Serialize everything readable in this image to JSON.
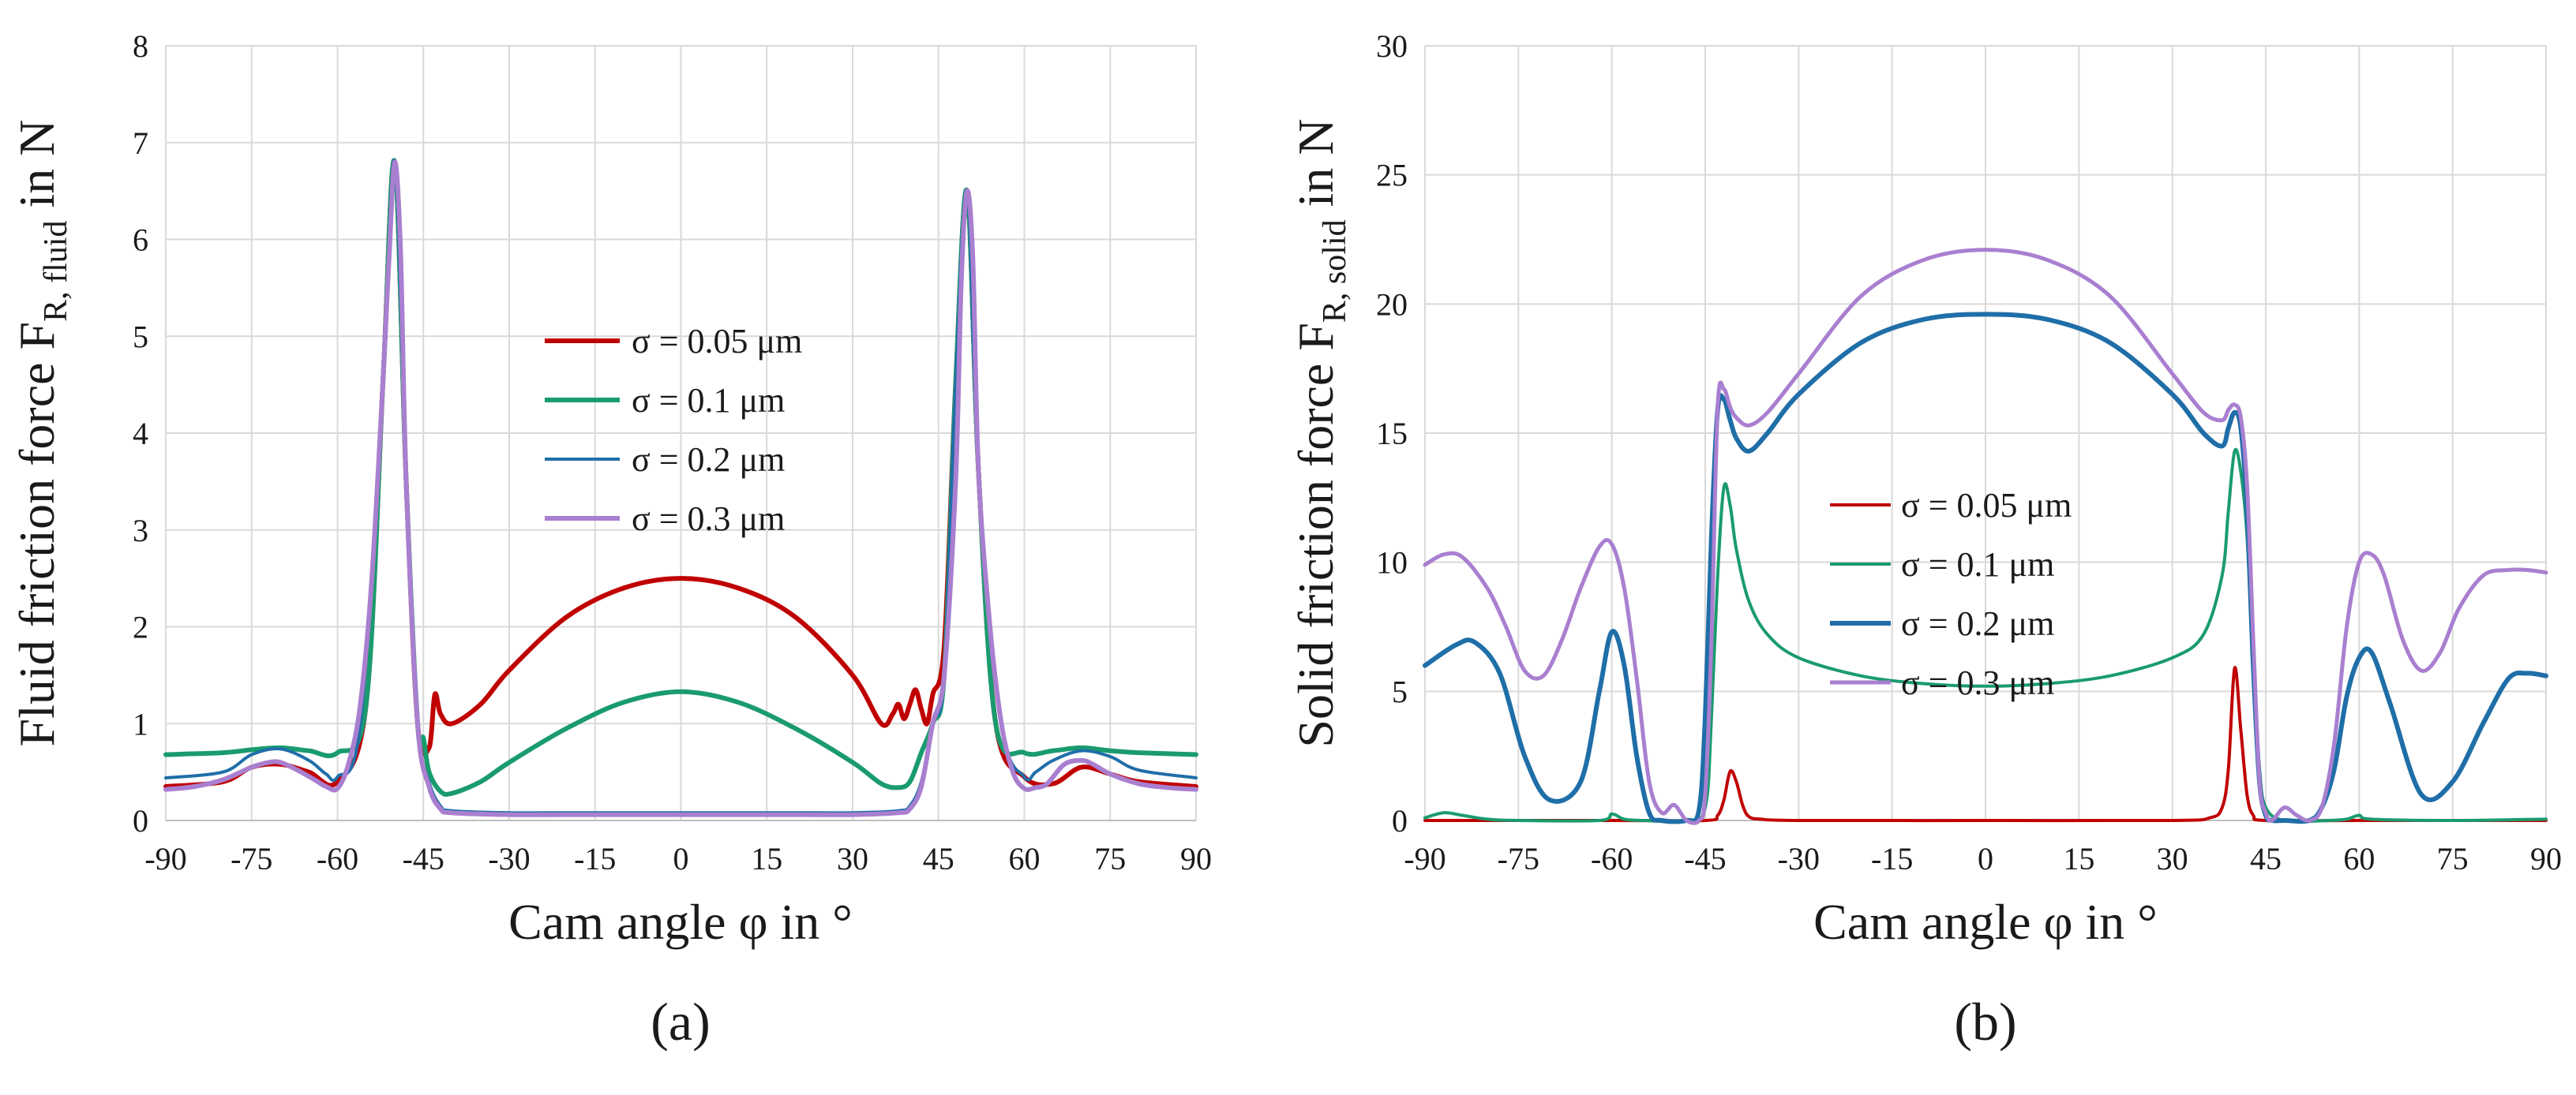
{
  "chart_data": [
    {
      "type": "line",
      "caption": "(a)",
      "title": "",
      "xlabel": "Cam angle φ in °",
      "ylabel_main": "Fluid friction force F",
      "ylabel_sub": "R, fluid",
      "ylabel_tail": " in N",
      "xlim": [
        -90,
        90
      ],
      "ylim": [
        0,
        8
      ],
      "xticks": [
        -90,
        -75,
        -60,
        -45,
        -30,
        -15,
        0,
        15,
        30,
        45,
        60,
        75,
        90
      ],
      "yticks": [
        0,
        1,
        2,
        3,
        4,
        5,
        6,
        7,
        8
      ],
      "grid": true,
      "legend_position": "center",
      "series": [
        {
          "name": "σ = 0.05 μm",
          "color": "#c00000",
          "width": 6,
          "x": [
            -90,
            -80,
            -75,
            -70,
            -65,
            -60,
            -55,
            -52,
            -50,
            -48,
            -46,
            -44,
            -43,
            -42,
            -40,
            -35,
            -30,
            -20,
            -10,
            0,
            10,
            20,
            30,
            35,
            37,
            38,
            39,
            40,
            41,
            42,
            43,
            44,
            46,
            48,
            50,
            52,
            55,
            60,
            65,
            70,
            75,
            80,
            90
          ],
          "y": [
            0.35,
            0.4,
            0.55,
            0.58,
            0.5,
            0.4,
            1.2,
            4.6,
            6.8,
            3.5,
            1.0,
            0.75,
            1.3,
            1.1,
            1.0,
            1.2,
            1.55,
            2.1,
            2.4,
            2.5,
            2.4,
            2.1,
            1.5,
            1.0,
            1.1,
            1.2,
            1.05,
            1.2,
            1.35,
            1.15,
            1.0,
            1.3,
            1.8,
            4.5,
            6.5,
            3.6,
            1.0,
            0.45,
            0.38,
            0.55,
            0.48,
            0.4,
            0.35
          ]
        },
        {
          "name": "σ = 0.1 μm",
          "color": "#1a9b6e",
          "width": 6,
          "x": [
            -90,
            -80,
            -75,
            -70,
            -65,
            -60,
            -55,
            -52,
            -50,
            -48,
            -46,
            -45,
            -44,
            -42,
            -40,
            -35,
            -30,
            -20,
            -10,
            0,
            10,
            20,
            30,
            35,
            38,
            40,
            42,
            44,
            46,
            48,
            50,
            52,
            55,
            60,
            65,
            70,
            75,
            80,
            90
          ],
          "y": [
            0.68,
            0.7,
            0.73,
            0.75,
            0.72,
            0.7,
            1.2,
            4.6,
            6.8,
            3.5,
            1.0,
            0.85,
            0.5,
            0.3,
            0.28,
            0.4,
            0.6,
            0.95,
            1.22,
            1.33,
            1.22,
            0.95,
            0.6,
            0.38,
            0.34,
            0.4,
            0.7,
            1.0,
            1.5,
            4.5,
            6.5,
            3.6,
            1.0,
            0.7,
            0.72,
            0.75,
            0.72,
            0.7,
            0.68
          ]
        },
        {
          "name": "σ = 0.2 μm",
          "color": "#1f6ea8",
          "width": 4,
          "x": [
            -90,
            -80,
            -75,
            -70,
            -65,
            -62,
            -60,
            -56,
            -52,
            -50,
            -48,
            -46,
            -44,
            -42,
            -40,
            -30,
            -20,
            -10,
            0,
            10,
            20,
            30,
            38,
            40,
            42,
            44,
            46,
            48,
            50,
            52,
            56,
            60,
            62,
            65,
            70,
            75,
            80,
            90
          ],
          "y": [
            0.44,
            0.5,
            0.68,
            0.74,
            0.62,
            0.48,
            0.45,
            1.0,
            4.6,
            6.8,
            3.5,
            1.0,
            0.4,
            0.15,
            0.1,
            0.08,
            0.08,
            0.08,
            0.08,
            0.08,
            0.08,
            0.08,
            0.1,
            0.15,
            0.4,
            1.0,
            1.5,
            4.5,
            6.5,
            3.6,
            1.0,
            0.45,
            0.5,
            0.62,
            0.72,
            0.66,
            0.52,
            0.44
          ]
        },
        {
          "name": "σ = 0.3 μm",
          "color": "#a97fd0",
          "width": 6,
          "x": [
            -90,
            -85,
            -80,
            -75,
            -72,
            -70,
            -67,
            -64,
            -62,
            -60,
            -58,
            -56,
            -54,
            -52,
            -51,
            -50,
            -49,
            -48,
            -46,
            -44,
            -42,
            -40,
            -30,
            -20,
            -10,
            0,
            10,
            20,
            30,
            38,
            40,
            42,
            44,
            46,
            48,
            49,
            50,
            51,
            52,
            54,
            56,
            58,
            60,
            62,
            64,
            67,
            70,
            72,
            75,
            80,
            85,
            90
          ],
          "y": [
            0.32,
            0.35,
            0.42,
            0.55,
            0.6,
            0.6,
            0.52,
            0.42,
            0.35,
            0.33,
            0.6,
            1.2,
            2.5,
            4.6,
            5.8,
            6.8,
            5.9,
            3.5,
            1.0,
            0.35,
            0.12,
            0.08,
            0.06,
            0.06,
            0.06,
            0.06,
            0.06,
            0.06,
            0.06,
            0.08,
            0.12,
            0.35,
            1.0,
            1.5,
            3.5,
            5.6,
            6.5,
            5.8,
            3.6,
            2.0,
            1.0,
            0.5,
            0.33,
            0.34,
            0.38,
            0.58,
            0.62,
            0.58,
            0.48,
            0.38,
            0.34,
            0.32
          ]
        }
      ]
    },
    {
      "type": "line",
      "caption": "(b)",
      "title": "",
      "xlabel": "Cam angle φ in °",
      "ylabel_main": "Solid friction force F",
      "ylabel_sub": "R, solid",
      "ylabel_tail": " in N",
      "xlim": [
        -90,
        90
      ],
      "ylim": [
        0,
        30
      ],
      "xticks": [
        -90,
        -75,
        -60,
        -45,
        -30,
        -15,
        0,
        15,
        30,
        45,
        60,
        75,
        90
      ],
      "yticks": [
        0,
        5,
        10,
        15,
        20,
        25,
        30
      ],
      "grid": true,
      "legend_position": "center",
      "series": [
        {
          "name": "σ = 0.05 μm",
          "color": "#c00000",
          "width": 4,
          "x": [
            -90,
            -60,
            -45,
            -43,
            -42,
            -41,
            -40,
            -39,
            -38,
            -36,
            -30,
            0,
            30,
            36,
            38,
            39,
            40,
            41,
            42,
            43,
            45,
            60,
            90
          ],
          "y": [
            0,
            0,
            0,
            0.2,
            0.8,
            1.9,
            1.5,
            0.6,
            0.15,
            0.05,
            0,
            0,
            0,
            0.1,
            0.5,
            2.0,
            5.9,
            3.5,
            1.0,
            0.2,
            0,
            0,
            0
          ]
        },
        {
          "name": "σ = 0.1 μm",
          "color": "#1a9b6e",
          "width": 4,
          "x": [
            -90,
            -87,
            -84,
            -80,
            -75,
            -62,
            -60,
            -58,
            -55,
            -48,
            -45,
            -44,
            -43,
            -42,
            -41,
            -40,
            -38,
            -35,
            -30,
            -20,
            -10,
            0,
            10,
            20,
            30,
            35,
            38,
            39,
            40,
            41,
            42,
            43,
            44,
            45,
            48,
            55,
            58,
            60,
            62,
            75,
            90
          ],
          "y": [
            0.1,
            0.3,
            0.2,
            0.05,
            0,
            0,
            0.25,
            0.05,
            0,
            0,
            0.5,
            4.0,
            9.5,
            12.9,
            12.2,
            10.5,
            8.5,
            7.2,
            6.3,
            5.6,
            5.3,
            5.2,
            5.3,
            5.6,
            6.3,
            7.2,
            9.5,
            12.0,
            14.3,
            13.5,
            11.0,
            6.0,
            2.0,
            0.5,
            0,
            0,
            0.05,
            0.2,
            0.05,
            0,
            0.05
          ]
        },
        {
          "name": "σ = 0.2 μm",
          "color": "#1f6ea8",
          "width": 6,
          "x": [
            -90,
            -85,
            -82,
            -78,
            -74,
            -70,
            -65,
            -62,
            -60,
            -58,
            -56,
            -54,
            -52,
            -48,
            -46,
            -45,
            -44,
            -43,
            -42,
            -41,
            -40,
            -38,
            -35,
            -30,
            -20,
            -10,
            0,
            10,
            20,
            30,
            35,
            38,
            39,
            40,
            41,
            42,
            43,
            44,
            45,
            46,
            48,
            52,
            54,
            56,
            58,
            60,
            62,
            65,
            70,
            75,
            80,
            84,
            87,
            90
          ],
          "y": [
            6.0,
            6.8,
            6.9,
            5.7,
            2.5,
            0.8,
            1.5,
            5.0,
            7.3,
            6.0,
            2.5,
            0.3,
            0,
            0,
            0.4,
            4.0,
            11.0,
            15.9,
            16.3,
            15.5,
            14.8,
            14.3,
            15.0,
            16.5,
            18.5,
            19.4,
            19.6,
            19.4,
            18.5,
            16.5,
            15.0,
            14.5,
            15.2,
            15.8,
            15.2,
            12.0,
            6.0,
            1.5,
            0.2,
            0,
            0,
            0,
            0.5,
            2.0,
            4.8,
            6.3,
            6.5,
            4.5,
            1.0,
            1.5,
            3.8,
            5.5,
            5.7,
            5.6
          ]
        },
        {
          "name": "σ = 0.3 μm",
          "color": "#a97fd0",
          "width": 5,
          "x": [
            -90,
            -87,
            -84,
            -80,
            -77,
            -74,
            -71,
            -68,
            -65,
            -62,
            -60,
            -58,
            -56,
            -54,
            -52,
            -50,
            -48,
            -46,
            -45,
            -44,
            -43,
            -42,
            -41,
            -40,
            -38,
            -35,
            -30,
            -20,
            -10,
            0,
            10,
            20,
            30,
            35,
            38,
            39,
            40,
            41,
            42,
            43,
            44,
            45,
            46,
            48,
            50,
            52,
            54,
            56,
            58,
            60,
            62,
            64,
            67,
            70,
            73,
            76,
            80,
            84,
            87,
            90
          ],
          "y": [
            9.9,
            10.3,
            10.2,
            9.0,
            7.5,
            5.8,
            5.6,
            7.0,
            9.0,
            10.6,
            10.7,
            9.0,
            5.5,
            1.5,
            0.3,
            0.6,
            0,
            0,
            1.0,
            7.0,
            16.0,
            16.7,
            16.0,
            15.6,
            15.3,
            15.8,
            17.3,
            20.3,
            21.7,
            22.1,
            21.7,
            20.3,
            17.3,
            15.8,
            15.5,
            15.9,
            16.1,
            15.6,
            13.0,
            7.0,
            1.5,
            0.3,
            0,
            0.5,
            0.2,
            0,
            0.5,
            3.0,
            7.5,
            10.0,
            10.3,
            9.5,
            7.0,
            5.8,
            6.5,
            8.2,
            9.5,
            9.7,
            9.7,
            9.6
          ]
        }
      ]
    }
  ]
}
